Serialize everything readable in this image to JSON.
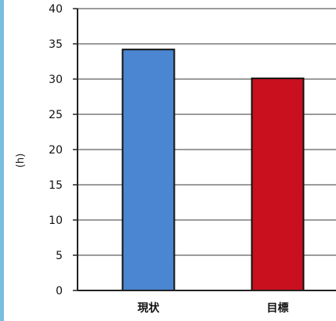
{
  "chart_data": {
    "type": "bar",
    "categories": [
      "現状",
      "目標"
    ],
    "values": [
      34.2,
      30.1
    ],
    "colors": [
      "#4a86d1",
      "#c8101e"
    ],
    "ylabel": "(h)",
    "ylim": [
      0,
      40
    ],
    "yticks": [
      0,
      5,
      10,
      15,
      20,
      25,
      30,
      35,
      40
    ],
    "grid": true,
    "legend": "none"
  }
}
